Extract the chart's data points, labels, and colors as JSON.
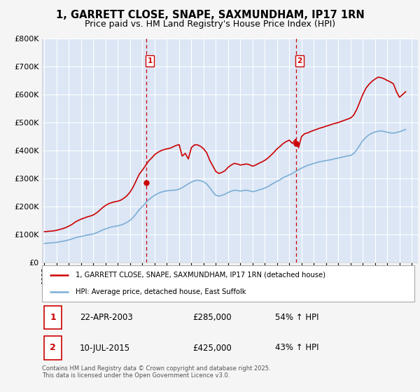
{
  "title": "1, GARRETT CLOSE, SNAPE, SAXMUNDHAM, IP17 1RN",
  "subtitle": "Price paid vs. HM Land Registry's House Price Index (HPI)",
  "title_fontsize": 10.5,
  "subtitle_fontsize": 9,
  "fig_bg_color": "#f5f5f5",
  "plot_bg_color": "#dce6f5",
  "grid_color": "#ffffff",
  "ylim": [
    0,
    800000
  ],
  "yticks": [
    0,
    100000,
    200000,
    300000,
    400000,
    500000,
    600000,
    700000,
    800000
  ],
  "xlim_start": 1994.8,
  "xlim_end": 2025.5,
  "xticks": [
    1995,
    1996,
    1997,
    1998,
    1999,
    2000,
    2001,
    2002,
    2003,
    2004,
    2005,
    2006,
    2007,
    2008,
    2009,
    2010,
    2011,
    2012,
    2013,
    2014,
    2015,
    2016,
    2017,
    2018,
    2019,
    2020,
    2021,
    2022,
    2023,
    2024,
    2025
  ],
  "red_color": "#cc0000",
  "blue_color": "#7aaed6",
  "vline_color": "#cc0000",
  "sale1_x": 2003.31,
  "sale1_y": 285000,
  "sale1_label": "1",
  "sale2_x": 2015.54,
  "sale2_y": 425000,
  "sale2_label": "2",
  "legend_line1": "1, GARRETT CLOSE, SNAPE, SAXMUNDHAM, IP17 1RN (detached house)",
  "legend_line2": "HPI: Average price, detached house, East Suffolk",
  "table_rows": [
    {
      "num": "1",
      "date": "22-APR-2003",
      "price": "£285,000",
      "hpi": "54% ↑ HPI"
    },
    {
      "num": "2",
      "date": "10-JUL-2015",
      "price": "£425,000",
      "hpi": "43% ↑ HPI"
    }
  ],
  "footnote": "Contains HM Land Registry data © Crown copyright and database right 2025.\nThis data is licensed under the Open Government Licence v3.0.",
  "hpi_data": {
    "years": [
      1995.0,
      1995.25,
      1995.5,
      1995.75,
      1996.0,
      1996.25,
      1996.5,
      1996.75,
      1997.0,
      1997.25,
      1997.5,
      1997.75,
      1998.0,
      1998.25,
      1998.5,
      1998.75,
      1999.0,
      1999.25,
      1999.5,
      1999.75,
      2000.0,
      2000.25,
      2000.5,
      2000.75,
      2001.0,
      2001.25,
      2001.5,
      2001.75,
      2002.0,
      2002.25,
      2002.5,
      2002.75,
      2003.0,
      2003.25,
      2003.5,
      2003.75,
      2004.0,
      2004.25,
      2004.5,
      2004.75,
      2005.0,
      2005.25,
      2005.5,
      2005.75,
      2006.0,
      2006.25,
      2006.5,
      2006.75,
      2007.0,
      2007.25,
      2007.5,
      2007.75,
      2008.0,
      2008.25,
      2008.5,
      2008.75,
      2009.0,
      2009.25,
      2009.5,
      2009.75,
      2010.0,
      2010.25,
      2010.5,
      2010.75,
      2011.0,
      2011.25,
      2011.5,
      2011.75,
      2012.0,
      2012.25,
      2012.5,
      2012.75,
      2013.0,
      2013.25,
      2013.5,
      2013.75,
      2014.0,
      2014.25,
      2014.5,
      2014.75,
      2015.0,
      2015.25,
      2015.5,
      2015.75,
      2016.0,
      2016.25,
      2016.5,
      2016.75,
      2017.0,
      2017.25,
      2017.5,
      2017.75,
      2018.0,
      2018.25,
      2018.5,
      2018.75,
      2019.0,
      2019.25,
      2019.5,
      2019.75,
      2020.0,
      2020.25,
      2020.5,
      2020.75,
      2021.0,
      2021.25,
      2021.5,
      2021.75,
      2022.0,
      2022.25,
      2022.5,
      2022.75,
      2023.0,
      2023.25,
      2023.5,
      2023.75,
      2024.0,
      2024.25,
      2024.5
    ],
    "values": [
      68000,
      69000,
      70000,
      71000,
      72000,
      74000,
      76000,
      78000,
      81000,
      84000,
      88000,
      91000,
      93000,
      96000,
      98000,
      100000,
      102000,
      106000,
      111000,
      116000,
      120000,
      124000,
      127000,
      129000,
      131000,
      134000,
      138000,
      144000,
      151000,
      161000,
      175000,
      189000,
      200000,
      212000,
      224000,
      232000,
      240000,
      246000,
      251000,
      254000,
      256000,
      257000,
      258000,
      259000,
      262000,
      267000,
      274000,
      281000,
      287000,
      292000,
      294000,
      292000,
      288000,
      281000,
      267000,
      252000,
      240000,
      237000,
      240000,
      244000,
      250000,
      255000,
      258000,
      257000,
      255000,
      257000,
      258000,
      256000,
      253000,
      255000,
      259000,
      262000,
      266000,
      271000,
      278000,
      284000,
      290000,
      296000,
      303000,
      308000,
      313000,
      318000,
      325000,
      331000,
      337000,
      342000,
      347000,
      350000,
      354000,
      357000,
      360000,
      362000,
      364000,
      366000,
      368000,
      371000,
      373000,
      376000,
      378000,
      381000,
      382000,
      389000,
      402000,
      419000,
      435000,
      447000,
      456000,
      462000,
      466000,
      469000,
      470000,
      468000,
      465000,
      463000,
      462000,
      464000,
      467000,
      471000,
      475000
    ]
  },
  "price_data": {
    "years": [
      1995.0,
      1995.25,
      1995.5,
      1995.75,
      1996.0,
      1996.25,
      1996.5,
      1996.75,
      1997.0,
      1997.25,
      1997.5,
      1997.75,
      1998.0,
      1998.25,
      1998.5,
      1998.75,
      1999.0,
      1999.25,
      1999.5,
      1999.75,
      2000.0,
      2000.25,
      2000.5,
      2000.75,
      2001.0,
      2001.25,
      2001.5,
      2001.75,
      2002.0,
      2002.25,
      2002.5,
      2002.75,
      2003.0,
      2003.25,
      2003.5,
      2003.75,
      2004.0,
      2004.25,
      2004.5,
      2004.75,
      2005.0,
      2005.25,
      2005.5,
      2005.75,
      2006.0,
      2006.25,
      2006.5,
      2006.75,
      2007.0,
      2007.25,
      2007.5,
      2007.75,
      2008.0,
      2008.25,
      2008.5,
      2008.75,
      2009.0,
      2009.25,
      2009.5,
      2009.75,
      2010.0,
      2010.25,
      2010.5,
      2010.75,
      2011.0,
      2011.25,
      2011.5,
      2011.75,
      2012.0,
      2012.25,
      2012.5,
      2012.75,
      2013.0,
      2013.25,
      2013.5,
      2013.75,
      2014.0,
      2014.25,
      2014.5,
      2014.75,
      2015.0,
      2015.25,
      2015.5,
      2015.75,
      2016.0,
      2016.25,
      2016.5,
      2016.75,
      2017.0,
      2017.25,
      2017.5,
      2017.75,
      2018.0,
      2018.25,
      2018.5,
      2018.75,
      2019.0,
      2019.25,
      2019.5,
      2019.75,
      2020.0,
      2020.25,
      2020.5,
      2020.75,
      2021.0,
      2021.25,
      2021.5,
      2021.75,
      2022.0,
      2022.25,
      2022.5,
      2022.75,
      2023.0,
      2023.25,
      2023.5,
      2023.75,
      2024.0,
      2024.25,
      2024.5
    ],
    "values": [
      110000,
      111000,
      112000,
      113000,
      115000,
      118000,
      121000,
      125000,
      130000,
      136000,
      144000,
      150000,
      155000,
      159000,
      163000,
      166000,
      170000,
      177000,
      186000,
      196000,
      204000,
      210000,
      214000,
      217000,
      219000,
      223000,
      230000,
      239000,
      252000,
      270000,
      293000,
      316000,
      330000,
      346000,
      362000,
      373000,
      385000,
      393000,
      399000,
      403000,
      406000,
      408000,
      413000,
      418000,
      421000,
      380000,
      390000,
      370000,
      410000,
      420000,
      420000,
      415000,
      406000,
      392000,
      365000,
      345000,
      325000,
      318000,
      322000,
      328000,
      340000,
      348000,
      354000,
      352000,
      348000,
      350000,
      352000,
      349000,
      344000,
      348000,
      354000,
      359000,
      365000,
      373000,
      383000,
      394000,
      406000,
      415000,
      425000,
      432000,
      437000,
      425000,
      440000,
      410000,
      450000,
      460000,
      463000,
      468000,
      472000,
      476000,
      480000,
      483000,
      487000,
      490000,
      494000,
      497000,
      500000,
      504000,
      508000,
      512000,
      516000,
      526000,
      546000,
      573000,
      600000,
      622000,
      636000,
      647000,
      655000,
      662000,
      660000,
      656000,
      650000,
      645000,
      638000,
      610000,
      590000,
      600000,
      610000
    ]
  }
}
